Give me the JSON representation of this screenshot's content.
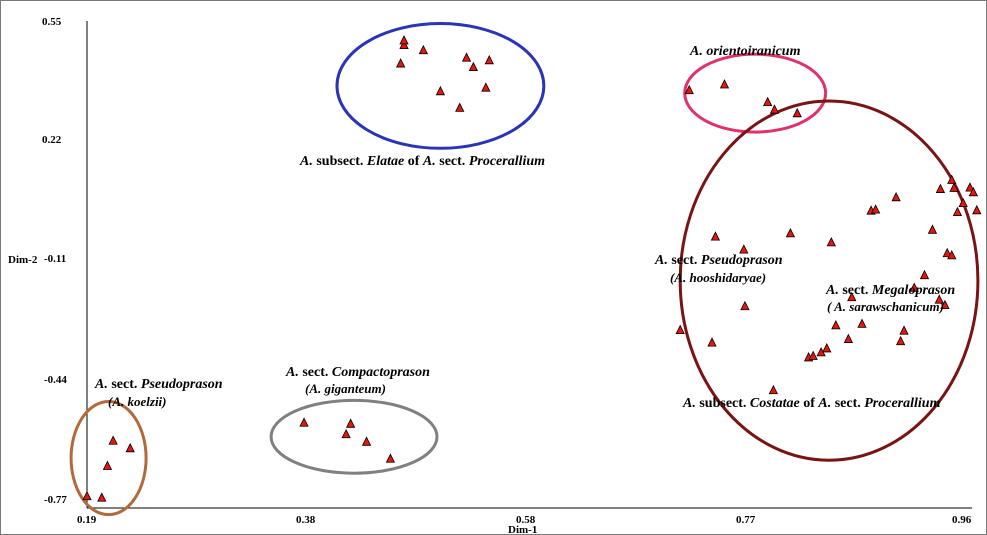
{
  "chart_data": {
    "type": "scatter",
    "title": "",
    "xlabel": "Dim-1",
    "ylabel": "Dim-2",
    "xlim": [
      0.19,
      0.96
    ],
    "ylim": [
      -0.77,
      0.55
    ],
    "x_ticks": [
      "0.19",
      "0.38",
      "0.58",
      "0.77",
      "0.96"
    ],
    "y_ticks": [
      "0.55",
      "0.22",
      "-0.11",
      "-0.44",
      "-0.77"
    ],
    "marker": "triangle",
    "marker_color": "#e8150b",
    "grid": false,
    "points": [
      {
        "x": 0.19,
        "y": -0.768
      },
      {
        "x": 0.203,
        "y": -0.772
      },
      {
        "x": 0.208,
        "y": -0.684
      },
      {
        "x": 0.213,
        "y": -0.614
      },
      {
        "x": 0.228,
        "y": -0.635
      },
      {
        "x": 0.381,
        "y": -0.564
      },
      {
        "x": 0.418,
        "y": -0.596
      },
      {
        "x": 0.422,
        "y": -0.567
      },
      {
        "x": 0.436,
        "y": -0.617
      },
      {
        "x": 0.457,
        "y": -0.664
      },
      {
        "x": 0.466,
        "y": 0.432
      },
      {
        "x": 0.469,
        "y": 0.483
      },
      {
        "x": 0.469,
        "y": 0.496
      },
      {
        "x": 0.486,
        "y": 0.469
      },
      {
        "x": 0.501,
        "y": 0.355
      },
      {
        "x": 0.518,
        "y": 0.309
      },
      {
        "x": 0.524,
        "y": 0.448
      },
      {
        "x": 0.53,
        "y": 0.422
      },
      {
        "x": 0.541,
        "y": 0.365
      },
      {
        "x": 0.544,
        "y": 0.441
      },
      {
        "x": 0.72,
        "y": 0.358
      },
      {
        "x": 0.751,
        "y": 0.374
      },
      {
        "x": 0.789,
        "y": 0.325
      },
      {
        "x": 0.795,
        "y": 0.304
      },
      {
        "x": 0.815,
        "y": 0.294
      },
      {
        "x": 0.712,
        "y": -0.307
      },
      {
        "x": 0.743,
        "y": -0.048
      },
      {
        "x": 0.74,
        "y": -0.342
      },
      {
        "x": 0.768,
        "y": -0.084
      },
      {
        "x": 0.769,
        "y": -0.241
      },
      {
        "x": 0.794,
        "y": -0.474
      },
      {
        "x": 0.809,
        "y": -0.039
      },
      {
        "x": 0.825,
        "y": -0.383
      },
      {
        "x": 0.829,
        "y": -0.379
      },
      {
        "x": 0.836,
        "y": -0.369
      },
      {
        "x": 0.841,
        "y": -0.358
      },
      {
        "x": 0.845,
        "y": -0.064
      },
      {
        "x": 0.849,
        "y": -0.294
      },
      {
        "x": 0.86,
        "y": -0.332
      },
      {
        "x": 0.863,
        "y": -0.216
      },
      {
        "x": 0.872,
        "y": -0.29
      },
      {
        "x": 0.88,
        "y": 0.024
      },
      {
        "x": 0.884,
        "y": 0.027
      },
      {
        "x": 0.902,
        "y": 0.061
      },
      {
        "x": 0.906,
        "y": -0.338
      },
      {
        "x": 0.909,
        "y": -0.309
      },
      {
        "x": 0.918,
        "y": -0.19
      },
      {
        "x": 0.927,
        "y": -0.155
      },
      {
        "x": 0.934,
        "y": -0.029
      },
      {
        "x": 0.941,
        "y": 0.084
      },
      {
        "x": 0.94,
        "y": -0.223
      },
      {
        "x": 0.945,
        "y": -0.238
      },
      {
        "x": 0.947,
        "y": -0.094
      },
      {
        "x": 0.951,
        "y": 0.109
      },
      {
        "x": 0.951,
        "y": -0.1
      },
      {
        "x": 0.953,
        "y": 0.087
      },
      {
        "x": 0.956,
        "y": 0.02
      },
      {
        "x": 0.961,
        "y": 0.045
      },
      {
        "x": 0.967,
        "y": 0.088
      },
      {
        "x": 0.97,
        "y": 0.075
      },
      {
        "x": 0.973,
        "y": 0.025
      }
    ],
    "groups": [
      {
        "id": "pseudoprason-koelzii",
        "ellipse": {
          "cx": 0.209,
          "cy": -0.662,
          "rx": 0.033,
          "ry": 0.157,
          "color": "#b26a3d"
        },
        "lines": [
          [
            "A. sect. ",
            "Pseudoprason"
          ],
          [
            "(A. koelzii)"
          ]
        ]
      },
      {
        "id": "compactoprason",
        "ellipse": {
          "cx": 0.425,
          "cy": -0.603,
          "rx": 0.073,
          "ry": 0.101,
          "color": "#808080"
        },
        "lines": [
          [
            "A. sect.  ",
            "Compactoprason"
          ],
          [
            "(A.  giganteum)"
          ]
        ]
      },
      {
        "id": "elatae",
        "ellipse": {
          "cx": 0.501,
          "cy": 0.37,
          "rx": 0.091,
          "ry": 0.173,
          "color": "#2a34b8"
        },
        "lines": [
          [
            "A. subsect. ",
            "Elatae",
            " of A. sect.  ",
            "Procerallium"
          ]
        ]
      },
      {
        "id": "orientoiranicum",
        "ellipse": {
          "cx": 0.778,
          "cy": 0.35,
          "rx": 0.062,
          "ry": 0.108,
          "color": "#e0306e"
        },
        "lines": [
          [
            "A. orientoiranicum"
          ]
        ]
      },
      {
        "id": "costatae",
        "ellipse": {
          "cx": 0.843,
          "cy": -0.17,
          "rx": 0.131,
          "ry": 0.498,
          "color": "#7a1414"
        },
        "lines": [
          [
            "A. subsect. ",
            "Costatae",
            " of A. sect.  ",
            "Procerallium"
          ]
        ]
      }
    ],
    "inner_labels": [
      {
        "id": "pseudoprason-hooshidaryae",
        "lines": [
          [
            "A. sect.  ",
            "Pseudoprason"
          ],
          [
            "(A. hooshidaryae)"
          ]
        ]
      },
      {
        "id": "megaloprason",
        "lines": [
          [
            "A. sect.  ",
            "Megaloprason"
          ],
          [
            "( A. sarawschanicum)"
          ]
        ]
      }
    ]
  }
}
